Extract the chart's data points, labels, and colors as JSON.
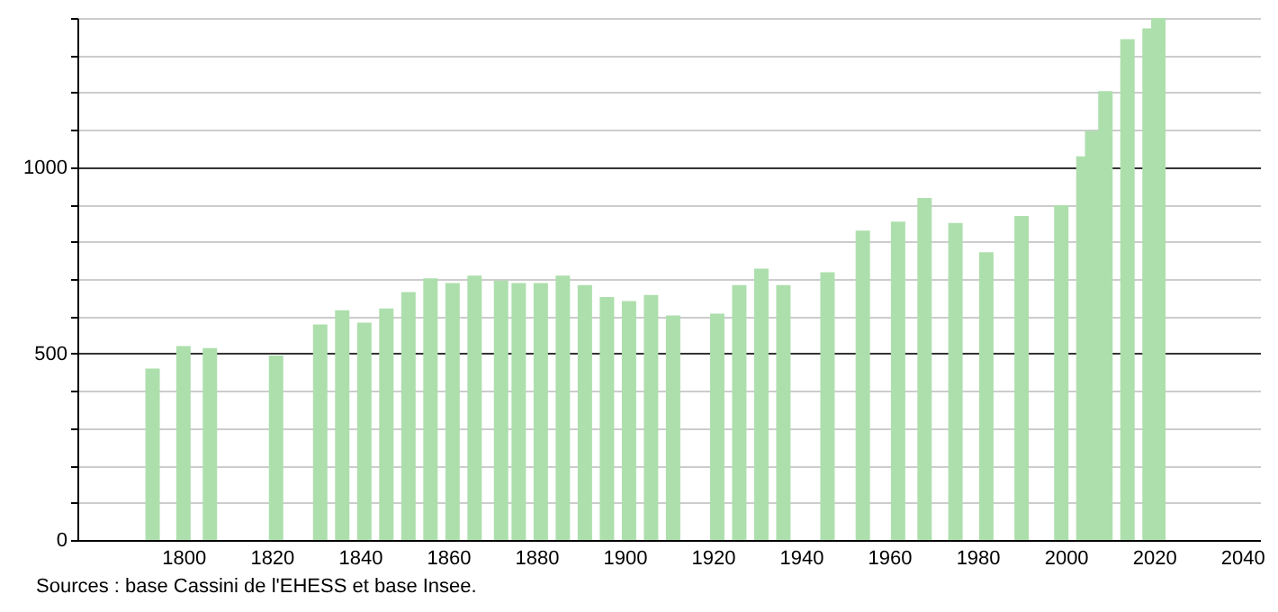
{
  "chart_data": {
    "type": "bar",
    "x": [
      1793,
      1800,
      1806,
      1821,
      1831,
      1836,
      1841,
      1846,
      1851,
      1856,
      1861,
      1866,
      1872,
      1876,
      1881,
      1886,
      1891,
      1896,
      1901,
      1906,
      1911,
      1921,
      1926,
      1931,
      1936,
      1946,
      1954,
      1962,
      1968,
      1975,
      1982,
      1990,
      1999,
      2004,
      2006,
      2009,
      2014,
      2019,
      2021
    ],
    "values": [
      460,
      520,
      515,
      495,
      578,
      616,
      583,
      621,
      665,
      702,
      689,
      709,
      696,
      689,
      689,
      709,
      684,
      652,
      641,
      657,
      602,
      607,
      684,
      728,
      684,
      718,
      830,
      854,
      917,
      850,
      772,
      869,
      898,
      1029,
      1097,
      1204,
      1343,
      1372,
      1400
    ],
    "color": "#addfad",
    "xlim": [
      1778,
      2042
    ],
    "xticks": [
      1800,
      1820,
      1840,
      1860,
      1880,
      1900,
      1920,
      1940,
      1960,
      1980,
      2000,
      2020,
      2040
    ],
    "ylim": [
      0,
      1400
    ],
    "yticks": [
      0,
      {
        "value": 100,
        "label": null
      },
      {
        "value": 200,
        "label": null
      },
      {
        "value": 300,
        "label": null
      },
      {
        "value": 400,
        "label": null
      },
      500,
      {
        "value": 600,
        "label": null
      },
      {
        "value": 700,
        "label": null
      },
      {
        "value": 800,
        "label": null
      },
      {
        "value": 900,
        "label": null
      },
      1000,
      {
        "value": 1100,
        "label": null
      },
      {
        "value": 1200,
        "label": null
      },
      {
        "value": 1300,
        "label": null
      },
      {
        "value": 1400,
        "label": null
      }
    ],
    "grid": "y",
    "annotations": [
      "Sources : base Cassini de l'EHESS et base Insee."
    ]
  }
}
